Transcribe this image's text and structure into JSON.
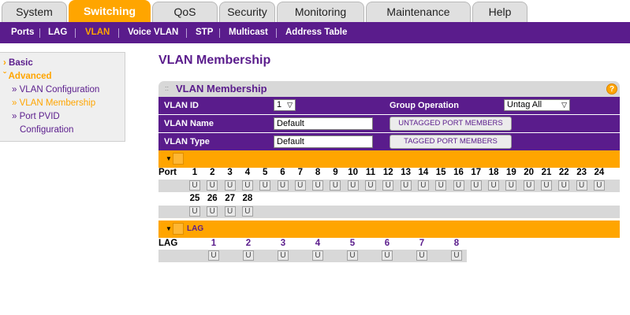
{
  "tabs": [
    {
      "label": "System",
      "active": false
    },
    {
      "label": "Switching",
      "active": true
    },
    {
      "label": "QoS",
      "active": false
    },
    {
      "label": "Security",
      "active": false
    },
    {
      "label": "Monitoring",
      "active": false
    },
    {
      "label": "Maintenance",
      "active": false
    },
    {
      "label": "Help",
      "active": false
    }
  ],
  "subnav": [
    {
      "label": "Ports",
      "active": false
    },
    {
      "label": "LAG",
      "active": false
    },
    {
      "label": "VLAN",
      "active": true
    },
    {
      "label": "Voice VLAN",
      "active": false
    },
    {
      "label": "STP",
      "active": false
    },
    {
      "label": "Multicast",
      "active": false
    },
    {
      "label": "Address Table",
      "active": false
    }
  ],
  "leftmenu": {
    "basic": "Basic",
    "advanced": "Advanced",
    "items": [
      "» VLAN Configuration",
      "» VLAN Membership",
      "» Port PVID",
      "Configuration"
    ]
  },
  "page_title": "VLAN Membership",
  "panel": {
    "title": "VLAN Membership",
    "help": "?",
    "vlan_id_label": "VLAN ID",
    "vlan_id_value": "1",
    "group_operation_label": "Group Operation",
    "group_operation_value": "Untag All",
    "vlan_name_label": "VLAN Name",
    "vlan_name_value": "Default",
    "vlan_type_label": "VLAN Type",
    "vlan_type_value": "Default",
    "untagged_button": "UNTAGGED PORT MEMBERS",
    "tagged_button": "TAGGED PORT MEMBERS",
    "port_label": "Port",
    "ports_row1": [
      "1",
      "2",
      "3",
      "4",
      "5",
      "6",
      "7",
      "8",
      "9",
      "10",
      "11",
      "12",
      "13",
      "14",
      "15",
      "16",
      "17",
      "18",
      "19",
      "20",
      "21",
      "22",
      "23",
      "24"
    ],
    "ports_row2": [
      "25",
      "26",
      "27",
      "28"
    ],
    "port_state": "U",
    "lag_section": "LAG",
    "lag_label": "LAG",
    "lags": [
      "1",
      "2",
      "3",
      "4",
      "5",
      "6",
      "7",
      "8"
    ]
  },
  "colors": {
    "accent": "#ffa500",
    "brand": "#5a1c8c"
  }
}
